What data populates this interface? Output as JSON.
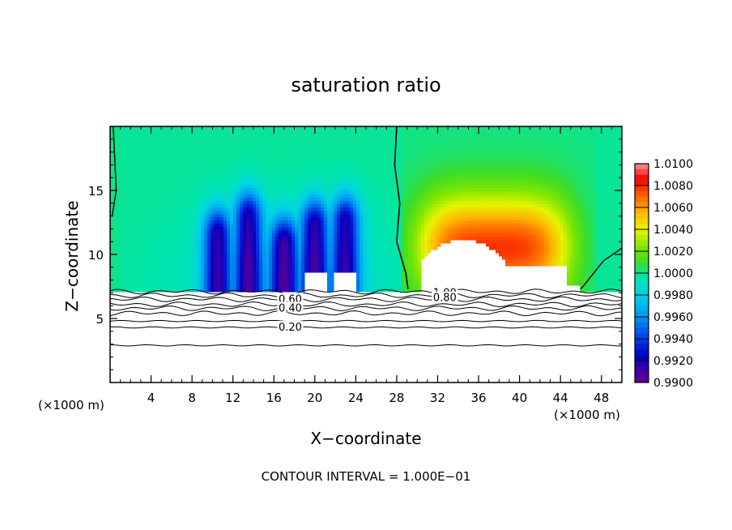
{
  "chart_data": {
    "type": "heatmap",
    "title": "saturation ratio",
    "xlabel": "X−coordinate",
    "ylabel": "Z−coordinate",
    "x_unit_left": "(×1000 m)",
    "x_unit_right": "(×1000 m)",
    "xlim": [
      0,
      50
    ],
    "ylim": [
      0,
      20
    ],
    "x_ticks": [
      4,
      8,
      12,
      16,
      20,
      24,
      28,
      32,
      36,
      40,
      44,
      48
    ],
    "y_ticks": [
      5,
      10,
      15
    ],
    "footer": "CONTOUR INTERVAL = 1.000E−01",
    "colorbar": {
      "min": 0.99,
      "max": 1.01,
      "labels": [
        "1.0100",
        "1.0080",
        "1.0060",
        "1.0040",
        "1.0020",
        "1.0000",
        "0.9980",
        "0.9960",
        "0.9940",
        "0.9920",
        "0.9900"
      ]
    },
    "contour_labels": [
      {
        "text": "0.60",
        "x": 17.6,
        "z": 6.5
      },
      {
        "text": "0.40",
        "x": 17.6,
        "z": 5.8
      },
      {
        "text": "0.20",
        "x": 17.6,
        "z": 4.3
      },
      {
        "text": "1.00",
        "x": 32.7,
        "z": 7.0
      },
      {
        "text": "0.80",
        "x": 32.7,
        "z": 6.6
      }
    ],
    "fields": {
      "saturation_top_region": {
        "z_range": [
          7.2,
          20
        ],
        "dry_bands_x_centers": [
          10.5,
          13.5,
          17,
          20,
          23
        ],
        "moist_region_x_range": [
          29,
          47
        ],
        "boundary_contour_value": 1.0
      },
      "below_cloud_base_contours": [
        0.2,
        0.4,
        0.6,
        0.8,
        1.0
      ]
    }
  }
}
